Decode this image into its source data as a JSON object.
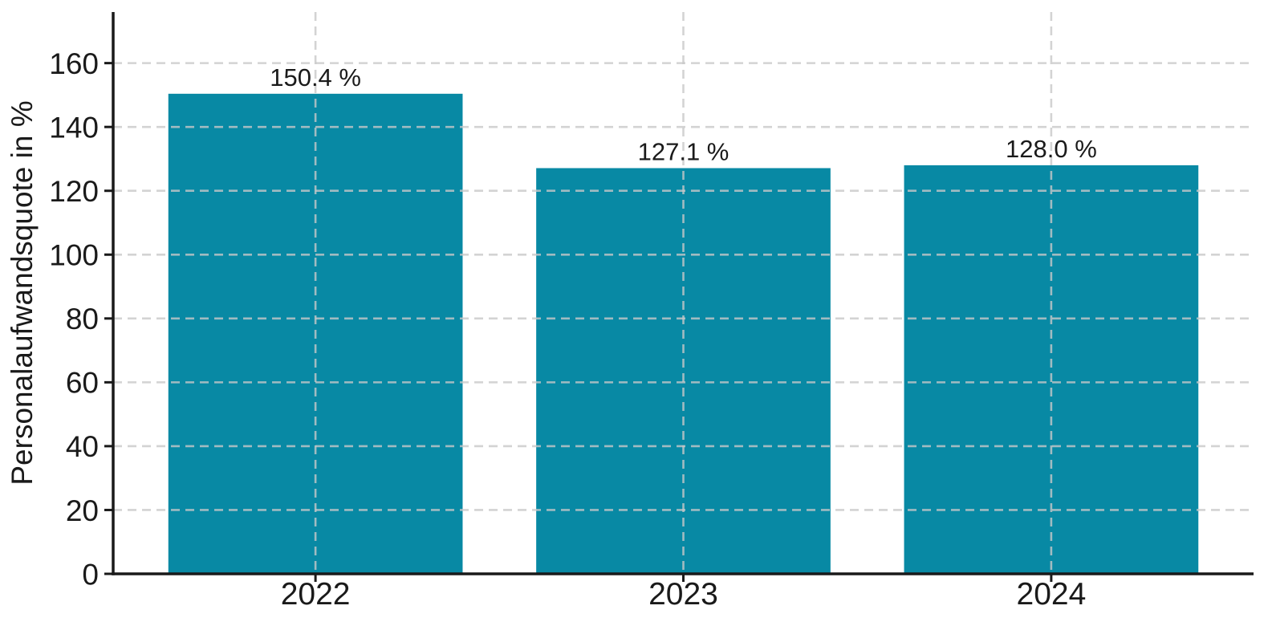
{
  "chart_data": {
    "type": "bar",
    "title": "",
    "categories": [
      "2022",
      "2023",
      "2024"
    ],
    "values": [
      150.4,
      127.1,
      128.0
    ],
    "value_labels": [
      "150.4 %",
      "127.1 %",
      "128.0 %"
    ],
    "xlabel": "",
    "ylabel": "Personalaufwandsquote in %",
    "ylim": [
      0,
      176
    ],
    "yticks": [
      0,
      20,
      40,
      60,
      80,
      100,
      120,
      140,
      160
    ],
    "grid": {
      "horizontal": true,
      "vertical": true,
      "style": "dashed",
      "drawn_above_bars": true
    },
    "legend": "none",
    "colors": {
      "bar": "#0889a4",
      "grid": "#c8c8c8",
      "axis": "#1a1a1a",
      "text": "#1a1a1a",
      "background": "#ffffff"
    }
  }
}
